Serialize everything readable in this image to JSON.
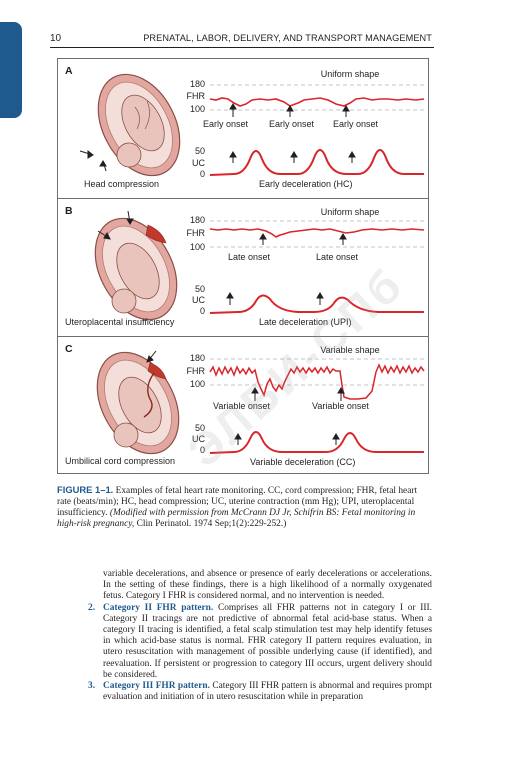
{
  "header": {
    "page_number": "10",
    "running_title": "PRENATAL, LABOR, DELIVERY, AND TRANSPORT MANAGEMENT"
  },
  "figure": {
    "panels": [
      {
        "letter": "A",
        "shape_title": "Uniform shape",
        "fhr_top": "180",
        "fhr_label": "FHR",
        "fhr_bottom": "100",
        "onsets": [
          "Early onset",
          "Early onset",
          "Early onset"
        ],
        "uc_top": "50",
        "uc_label": "UC",
        "uc_bottom": "0",
        "uterus_caption": "Head compression",
        "decel_caption": "Early deceleration (HC)"
      },
      {
        "letter": "B",
        "shape_title": "Uniform shape",
        "fhr_top": "180",
        "fhr_label": "FHR",
        "fhr_bottom": "100",
        "onsets": [
          "Late onset",
          "Late onset"
        ],
        "uc_top": "50",
        "uc_label": "UC",
        "uc_bottom": "0",
        "uterus_caption": "Uteroplacental insufficiency",
        "decel_caption": "Late deceleration (UPI)"
      },
      {
        "letter": "C",
        "shape_title": "Variable shape",
        "fhr_top": "180",
        "fhr_label": "FHR",
        "fhr_bottom": "100",
        "onsets": [
          "Variable onset",
          "Variable onset"
        ],
        "uc_top": "50",
        "uc_label": "UC",
        "uc_bottom": "0",
        "uterus_caption": "Umbilical cord compression",
        "decel_caption": "Variable deceleration (CC)"
      }
    ],
    "caption": {
      "label": "FIGURE 1–1.",
      "text": " Examples of fetal heart rate monitoring. CC, cord compression; FHR, fetal heart rate (beats/min); HC, head compression; UC, uterine contraction (mm Hg); UPI, uteroplacental insufficiency. ",
      "credit_italic": "(Modified with permission from McCrann DJ Jr, Schifrin BS: Fetal monitoring in high-risk pregnancy,",
      "credit_rest": " Clin Perinatol. 1974 Sep;1(2):229-252.)"
    },
    "watermark": "ЭЛБИ-СПб"
  },
  "body": {
    "continuation": "variable decelerations, and absence or presence of early decelerations or accelerations. In the setting of these findings, there is a high likelihood of a normally oxygenated fetus. Category I FHR is considered normal, and no intervention is needed.",
    "items": [
      {
        "number": "2.",
        "heading": "Category II FHR pattern.",
        "text": " Comprises all FHR patterns not in category I or III. Category II tracings are not predictive of abnormal fetal acid-base status. When a category II tracing is identified, a fetal scalp stimulation test may help identify fetuses in which acid-base status is normal. FHR category II pattern requires evaluation, in utero resuscitation with management of possible underlying cause (if identified), and reevaluation. If persistent or progression to category III occurs, urgent delivery should be considered."
      },
      {
        "number": "3.",
        "heading": "Category III FHR pattern.",
        "text": " Category III FHR pattern is abnormal and requires prompt evaluation and initiation of in utero resuscitation while in preparation"
      }
    ]
  },
  "colors": {
    "accent": "#1f5a8e",
    "trace": "#d9262b",
    "uterus": "#e2a8a0",
    "text": "#231f20"
  }
}
